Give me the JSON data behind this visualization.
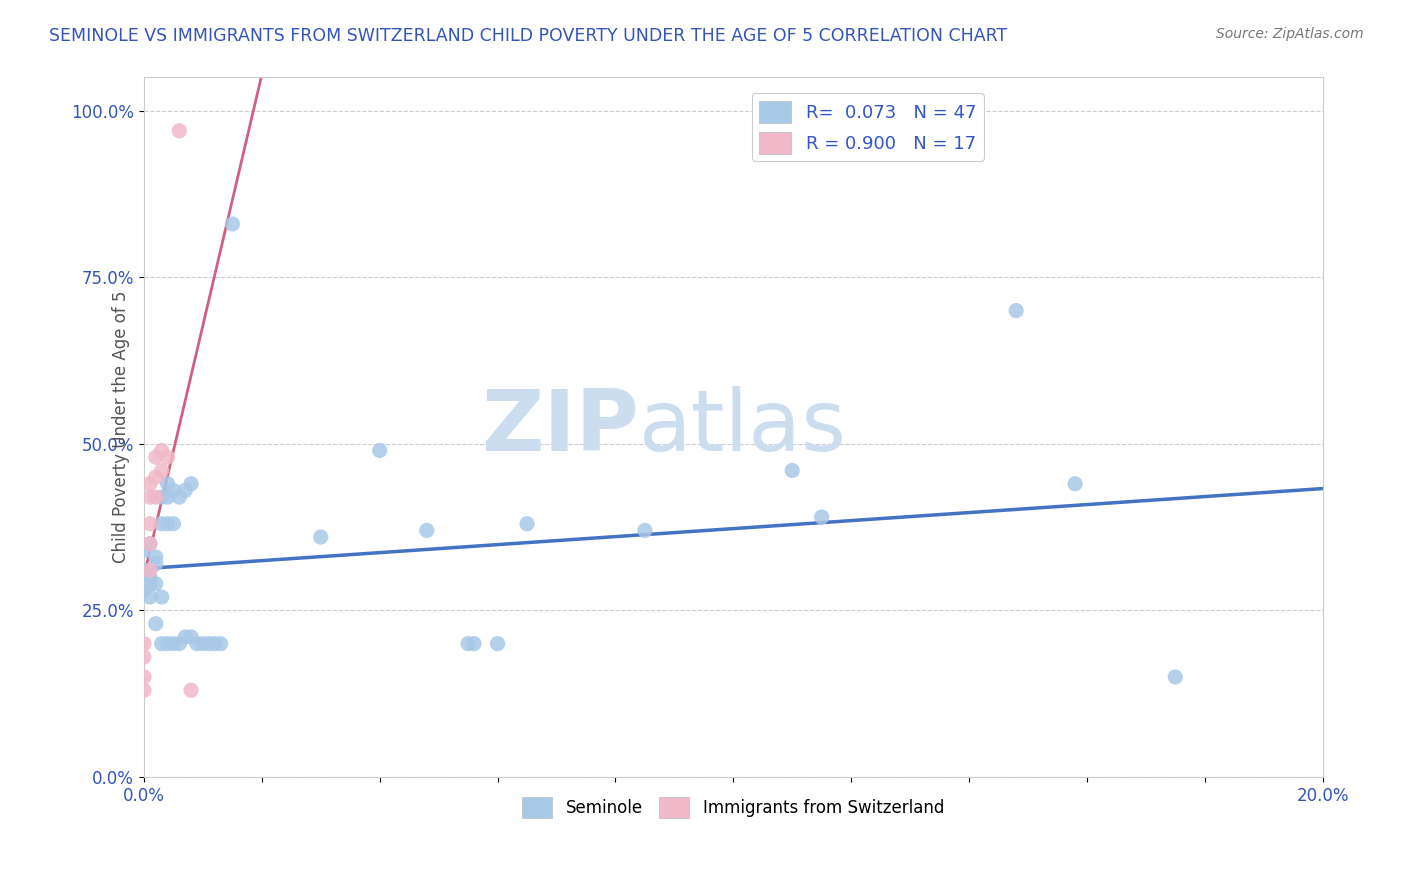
{
  "title": "SEMINOLE VS IMMIGRANTS FROM SWITZERLAND CHILD POVERTY UNDER THE AGE OF 5 CORRELATION CHART",
  "source_text": "Source: ZipAtlas.com",
  "ylabel": "Child Poverty Under the Age of 5",
  "xlim": [
    0.0,
    0.2
  ],
  "ylim": [
    0.0,
    1.05
  ],
  "xticks": [
    0.0,
    0.02,
    0.04,
    0.06,
    0.08,
    0.1,
    0.12,
    0.14,
    0.16,
    0.18,
    0.2
  ],
  "yticks": [
    0.0,
    0.25,
    0.5,
    0.75,
    1.0
  ],
  "ytick_labels": [
    "0.0%",
    "25.0%",
    "50.0%",
    "75.0%",
    "100.0%"
  ],
  "xtick_labels": [
    "0.0%",
    "",
    "",
    "",
    "",
    "",
    "",
    "",
    "",
    "",
    "20.0%"
  ],
  "r_seminole": 0.073,
  "n_seminole": 47,
  "r_switzerland": 0.9,
  "n_switzerland": 17,
  "blue_dot_color": "#a8c8e8",
  "blue_line_color": "#4472c4",
  "pink_dot_color": "#f0b8c8",
  "pink_line_color": "#d06080",
  "legend_r_color": "#3355cc",
  "watermark_color": "#ccddf0",
  "watermark_zip": "ZIP",
  "watermark_atlas": "atlas",
  "title_color": "#3355bb",
  "source_color": "#777777",
  "grid_color": "#cccccc",
  "axis_label_color": "#3355bb",
  "ylabel_color": "#555555",
  "seminole_points": [
    [
      0.0,
      0.34
    ],
    [
      0.0,
      0.28
    ],
    [
      0.0,
      0.31
    ],
    [
      0.001,
      0.29
    ],
    [
      0.001,
      0.3
    ],
    [
      0.001,
      0.35
    ],
    [
      0.001,
      0.27
    ],
    [
      0.002,
      0.29
    ],
    [
      0.002,
      0.33
    ],
    [
      0.002,
      0.32
    ],
    [
      0.002,
      0.23
    ],
    [
      0.003,
      0.27
    ],
    [
      0.003,
      0.42
    ],
    [
      0.003,
      0.38
    ],
    [
      0.003,
      0.2
    ],
    [
      0.004,
      0.42
    ],
    [
      0.004,
      0.44
    ],
    [
      0.004,
      0.38
    ],
    [
      0.004,
      0.2
    ],
    [
      0.005,
      0.43
    ],
    [
      0.005,
      0.38
    ],
    [
      0.005,
      0.2
    ],
    [
      0.006,
      0.42
    ],
    [
      0.006,
      0.2
    ],
    [
      0.007,
      0.43
    ],
    [
      0.007,
      0.21
    ],
    [
      0.008,
      0.44
    ],
    [
      0.008,
      0.21
    ],
    [
      0.009,
      0.2
    ],
    [
      0.01,
      0.2
    ],
    [
      0.011,
      0.2
    ],
    [
      0.012,
      0.2
    ],
    [
      0.013,
      0.2
    ],
    [
      0.015,
      0.83
    ],
    [
      0.03,
      0.36
    ],
    [
      0.04,
      0.49
    ],
    [
      0.048,
      0.37
    ],
    [
      0.055,
      0.2
    ],
    [
      0.056,
      0.2
    ],
    [
      0.06,
      0.2
    ],
    [
      0.065,
      0.38
    ],
    [
      0.085,
      0.37
    ],
    [
      0.11,
      0.46
    ],
    [
      0.115,
      0.39
    ],
    [
      0.148,
      0.7
    ],
    [
      0.158,
      0.44
    ],
    [
      0.175,
      0.15
    ]
  ],
  "switzerland_points": [
    [
      0.0,
      0.2
    ],
    [
      0.0,
      0.18
    ],
    [
      0.0,
      0.15
    ],
    [
      0.0,
      0.13
    ],
    [
      0.001,
      0.44
    ],
    [
      0.001,
      0.42
    ],
    [
      0.001,
      0.38
    ],
    [
      0.001,
      0.35
    ],
    [
      0.001,
      0.31
    ],
    [
      0.002,
      0.48
    ],
    [
      0.002,
      0.45
    ],
    [
      0.002,
      0.42
    ],
    [
      0.003,
      0.49
    ],
    [
      0.003,
      0.46
    ],
    [
      0.004,
      0.48
    ],
    [
      0.006,
      0.97
    ],
    [
      0.008,
      0.13
    ]
  ]
}
